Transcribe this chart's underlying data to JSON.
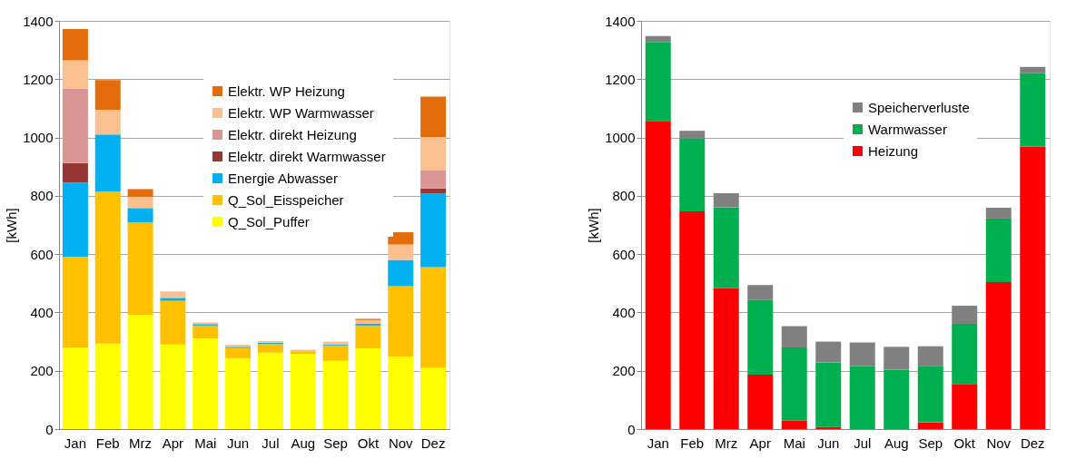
{
  "chart_data": [
    {
      "type": "bar",
      "stacked": true,
      "ylabel": "[kWh]",
      "categories": [
        "Jan",
        "Feb",
        "Mrz",
        "Apr",
        "Mai",
        "Jun",
        "Jul",
        "Aug",
        "Sep",
        "Okt",
        "Nov",
        "Dez"
      ],
      "ylim": [
        0,
        1400
      ],
      "yticks": [
        0,
        200,
        400,
        600,
        800,
        1000,
        1200,
        1400
      ],
      "grid": "y",
      "legend": "top right",
      "series": [
        {
          "name": "Q_Sol_Puffer",
          "color": "#ffff00",
          "values": [
            280,
            293,
            392,
            290,
            311,
            243,
            262,
            258,
            234,
            277,
            249,
            210
          ]
        },
        {
          "name": "Q_Sol_Eisspeicher",
          "color": "#ffc000",
          "values": [
            310,
            522,
            316,
            150,
            44,
            35,
            30,
            9,
            52,
            78,
            241,
            345
          ]
        },
        {
          "name": "Energie Abwasser",
          "color": "#00b0f0",
          "values": [
            255,
            195,
            50,
            10,
            5,
            4,
            4,
            0,
            3,
            6,
            90,
            253
          ]
        },
        {
          "name": "Elektr. direkt Warmwasser",
          "color": "#953735",
          "values": [
            67,
            0,
            0,
            0,
            0,
            0,
            0,
            0,
            0,
            0,
            0,
            17
          ]
        },
        {
          "name": "Elektr. direkt Heizung",
          "color": "#d99694",
          "values": [
            255,
            0,
            0,
            0,
            0,
            0,
            0,
            0,
            0,
            0,
            0,
            62
          ]
        },
        {
          "name": "Elektr. WP Warmwasser",
          "color": "#fac090",
          "values": [
            98,
            85,
            39,
            22,
            6,
            7,
            6,
            5,
            11,
            13,
            53,
            115
          ]
        },
        {
          "name": "Elektr. WP Heizung",
          "color": "#e46c0a",
          "values": [
            107,
            102,
            26,
            0,
            0,
            0,
            0,
            0,
            0,
            4,
            42,
            138
          ]
        }
      ]
    },
    {
      "type": "bar",
      "stacked": true,
      "ylabel": "[kWh]",
      "categories": [
        "Jan",
        "Feb",
        "Mrz",
        "Apr",
        "Mai",
        "Jun",
        "Jul",
        "Aug",
        "Sep",
        "Okt",
        "Nov",
        "Dez"
      ],
      "ylim": [
        0,
        1400
      ],
      "yticks": [
        0,
        200,
        400,
        600,
        800,
        1000,
        1200,
        1400
      ],
      "grid": "y",
      "legend": "top right",
      "series": [
        {
          "name": "Heizung",
          "color": "#ff0000",
          "values": [
            1057,
            747,
            483,
            187,
            30,
            7,
            0,
            0,
            23,
            155,
            504,
            969
          ]
        },
        {
          "name": "Warmwasser",
          "color": "#00b050",
          "values": [
            271,
            250,
            278,
            256,
            250,
            222,
            216,
            204,
            192,
            206,
            218,
            252
          ]
        },
        {
          "name": "Speicherverluste",
          "color": "#808080",
          "values": [
            20,
            26,
            48,
            51,
            73,
            71,
            81,
            78,
            69,
            62,
            37,
            21
          ]
        }
      ]
    }
  ]
}
